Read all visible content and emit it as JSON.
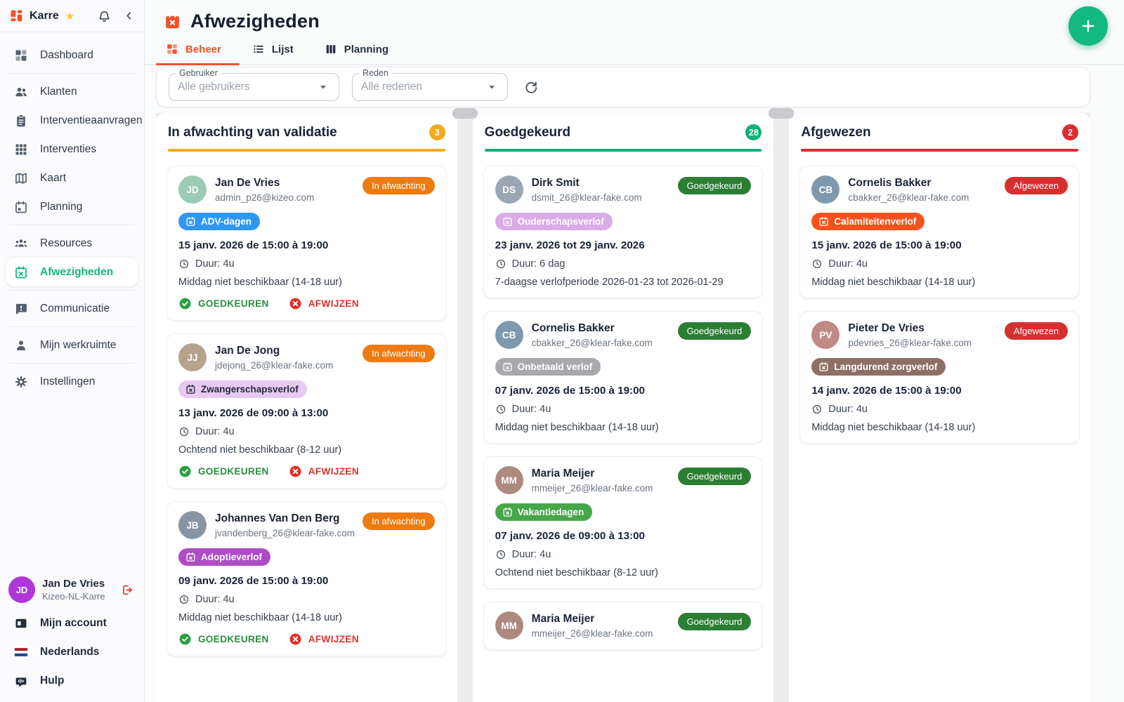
{
  "sidebar": {
    "brand": "Karre",
    "nav": [
      {
        "label": "Dashboard",
        "icon": "dashboard",
        "divider_after": true
      },
      {
        "label": "Klanten",
        "icon": "users"
      },
      {
        "label": "Interventieaanvragen",
        "icon": "clipboard"
      },
      {
        "label": "Interventies",
        "icon": "grid"
      },
      {
        "label": "Kaart",
        "icon": "map"
      },
      {
        "label": "Planning",
        "icon": "calendar",
        "divider_after": true
      },
      {
        "label": "Resources",
        "icon": "users-group"
      },
      {
        "label": "Afwezigheden",
        "icon": "calendar-x",
        "active": true,
        "divider_after": true
      },
      {
        "label": "Communicatie",
        "icon": "chat-alert",
        "divider_after": true
      },
      {
        "label": "Mijn werkruimte",
        "icon": "person",
        "divider_after": true
      },
      {
        "label": "Instellingen",
        "icon": "gear"
      }
    ],
    "user": {
      "name": "Jan De Vries",
      "org": "Kizeo-NL-Karre",
      "initials": "JD",
      "avatar_color": "#b136d9"
    },
    "footer": [
      {
        "label": "Mijn account",
        "icon": "card"
      },
      {
        "label": "Nederlands",
        "icon": "flag-nl"
      },
      {
        "label": "Hulp",
        "icon": "robot"
      }
    ]
  },
  "header": {
    "title": "Afwezigheden",
    "tabs": [
      {
        "label": "Beheer",
        "icon": "dashboard",
        "active": true
      },
      {
        "label": "Lijst",
        "icon": "list"
      },
      {
        "label": "Planning",
        "icon": "columns"
      }
    ]
  },
  "filters": {
    "user_label": "Gebruiker",
    "user_value": "Alle gebruikers",
    "reason_label": "Reden",
    "reason_value": "Alle redenen"
  },
  "actions": {
    "approve": "GOEDKEUREN",
    "reject": "AFWIJZEN"
  },
  "colors": {
    "brand": "#f4502a",
    "fab": "#12b981",
    "approve_action": "#268e3e",
    "reject_action": "#e0302d"
  },
  "board": {
    "columns": [
      {
        "title": "In afwachting van validatie",
        "count": "3",
        "accent": "#f6a81f",
        "cards": [
          {
            "name": "Jan De Vries",
            "email": "admin_p26@kizeo.com",
            "initials": "JD",
            "avatar_color": "#9ccbb5",
            "status": {
              "label": "In afwachting",
              "bg": "#ee7b10"
            },
            "tag": {
              "label": "ADV-dagen",
              "bg": "#2f97f2",
              "fg": "#ffffff"
            },
            "date": "15 janv. 2026 de 15:00 à 19:00",
            "duration": "Duur: 4u",
            "description": "Middag niet beschikbaar (14-18 uur)",
            "has_actions": true
          },
          {
            "name": "Jan De Jong",
            "email": "jdejong_26@klear-fake.com",
            "initials": "JJ",
            "avatar_color": "#b7a38c",
            "status": {
              "label": "In afwachting",
              "bg": "#ee7b10"
            },
            "tag": {
              "label": "Zwangerschapsverlof",
              "bg": "#e8c9f1",
              "fg": "#252c3a"
            },
            "date": "13 janv. 2026 de 09:00 à 13:00",
            "duration": "Duur: 4u",
            "description": "Ochtend niet beschikbaar (8-12 uur)",
            "has_actions": true
          },
          {
            "name": "Johannes Van Den Berg",
            "email": "jvandenberg_26@klear-fake.com",
            "initials": "JB",
            "avatar_color": "#8795a3",
            "status": {
              "label": "In afwachting",
              "bg": "#ee7b10"
            },
            "tag": {
              "label": "Adoptieverlof",
              "bg": "#ad4cc4",
              "fg": "#ffffff"
            },
            "date": "09 janv. 2026 de 15:00 à 19:00",
            "duration": "Duur: 4u",
            "description": "Middag niet beschikbaar (14-18 uur)",
            "has_actions": true
          }
        ]
      },
      {
        "title": "Goedgekeurd",
        "count": "28",
        "accent": "#10b176",
        "cards": [
          {
            "name": "Dirk Smit",
            "email": "dsmit_26@klear-fake.com",
            "initials": "DS",
            "avatar_color": "#9aa7b3",
            "status": {
              "label": "Goedgekeurd",
              "bg": "#2c7e33"
            },
            "tag": {
              "label": "Ouderschapsverlof",
              "bg": "#d9abe8",
              "fg": "#ffffff"
            },
            "date": "23 janv. 2026 tot 29 janv. 2026",
            "duration": "Duur: 6 dag",
            "description": "7-daagse verlofperiode 2026-01-23 tot 2026-01-29",
            "has_actions": false
          },
          {
            "name": "Cornelis Bakker",
            "email": "cbakker_26@klear-fake.com",
            "initials": "CB",
            "avatar_color": "#7e99ad",
            "status": {
              "label": "Goedgekeurd",
              "bg": "#2c7e33"
            },
            "tag": {
              "label": "Onbetaald verlof",
              "bg": "#a9a9ad",
              "fg": "#ffffff"
            },
            "date": "07 janv. 2026 de 15:00 à 19:00",
            "duration": "Duur: 4u",
            "description": "Middag niet beschikbaar (14-18 uur)",
            "has_actions": false
          },
          {
            "name": "Maria Meijer",
            "email": "mmeijer_26@klear-fake.com",
            "initials": "MM",
            "avatar_color": "#ac8a7f",
            "status": {
              "label": "Goedgekeurd",
              "bg": "#2c7e33"
            },
            "tag": {
              "label": "Vakantiedagen",
              "bg": "#47a64b",
              "fg": "#ffffff"
            },
            "date": "07 janv. 2026 de 09:00 à 13:00",
            "duration": "Duur: 4u",
            "description": "Ochtend niet beschikbaar (8-12 uur)",
            "has_actions": false
          },
          {
            "name": "Maria Meijer",
            "email": "mmeijer_26@klear-fake.com",
            "initials": "MM",
            "avatar_color": "#ac8a7f",
            "status": {
              "label": "Goedgekeurd",
              "bg": "#2c7e33"
            },
            "has_actions": false
          }
        ]
      },
      {
        "title": "Afgewezen",
        "count": "2",
        "accent": "#df2b30",
        "cards": [
          {
            "name": "Cornelis Bakker",
            "email": "cbakker_26@klear-fake.com",
            "initials": "CB",
            "avatar_color": "#7e99ad",
            "status": {
              "label": "Afgewezen",
              "bg": "#d62f2f"
            },
            "tag": {
              "label": "Calamiteitenverlof",
              "bg": "#f4521d",
              "fg": "#ffffff"
            },
            "date": "15 janv. 2026 de 15:00 à 19:00",
            "duration": "Duur: 4u",
            "description": "Middag niet beschikbaar (14-18 uur)",
            "has_actions": false
          },
          {
            "name": "Pieter De Vries",
            "email": "pdevries_26@klear-fake.com",
            "initials": "PV",
            "avatar_color": "#c08a84",
            "status": {
              "label": "Afgewezen",
              "bg": "#d62f2f"
            },
            "tag": {
              "label": "Langdurend zorgverlof",
              "bg": "#8d7065",
              "fg": "#ffffff"
            },
            "date": "14 janv. 2026 de 15:00 à 19:00",
            "duration": "Duur: 4u",
            "description": "Middag niet beschikbaar (14-18 uur)",
            "has_actions": false
          }
        ]
      }
    ]
  }
}
